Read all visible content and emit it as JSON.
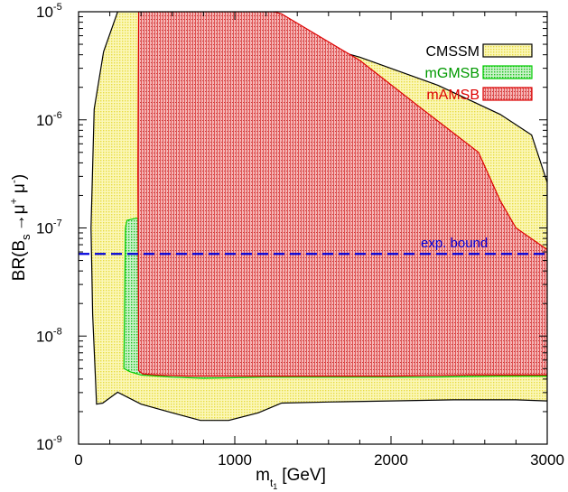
{
  "chart_data": {
    "type": "area",
    "xlabel": {
      "main": "m",
      "sub1": "t",
      "sub2": "1",
      "unit": "[GeV]"
    },
    "ylabel": {
      "prefix": "BR(B",
      "sub": "s",
      "arrow": "→",
      "mu1": "μ",
      "sup1": "+",
      "mu2": " μ",
      "sup2": "-",
      "suffix": ")"
    },
    "xlim": [
      0,
      3000
    ],
    "ylim_log10": [
      -9,
      -5
    ],
    "log_y": true,
    "x_ticks": [
      {
        "value": 0,
        "label": "0"
      },
      {
        "value": 1000,
        "label": "1000"
      },
      {
        "value": 2000,
        "label": "2000"
      },
      {
        "value": 3000,
        "label": "3000"
      }
    ],
    "y_ticks": [
      {
        "exp": -5,
        "base": "10",
        "sup": "-5"
      },
      {
        "exp": -6,
        "base": "10",
        "sup": "-6"
      },
      {
        "exp": -7,
        "base": "10",
        "sup": "-7"
      },
      {
        "exp": -8,
        "base": "10",
        "sup": "-8"
      },
      {
        "exp": -9,
        "base": "10",
        "sup": "-9"
      }
    ],
    "grid": false,
    "legend_position": "top-right",
    "series": [
      {
        "name": "CMSSM",
        "stroke": "#000000",
        "fill": "#f5f080",
        "pattern": "dots",
        "x": [
          115,
          155,
          250,
          400,
          600,
          780,
          960,
          1150,
          1300,
          1600,
          2000,
          2400,
          2800,
          3000,
          3000,
          2900,
          2700,
          2300,
          1800,
          1500,
          1300,
          1000,
          700,
          400,
          250,
          160,
          100,
          80,
          90,
          110
        ],
        "log10_y": [
          -8.63,
          -8.62,
          -8.52,
          -8.63,
          -8.71,
          -8.78,
          -8.78,
          -8.71,
          -8.62,
          -8.61,
          -8.6,
          -8.59,
          -8.59,
          -8.6,
          -6.58,
          -6.14,
          -5.95,
          -5.68,
          -5.42,
          -5.3,
          -5.2,
          -5.02,
          -4.85,
          -4.85,
          -5.0,
          -5.37,
          -5.9,
          -7.0,
          -7.8,
          -8.45
        ]
      },
      {
        "name": "mGMSB",
        "stroke": "#00cc00",
        "fill": "#bfeec0",
        "pattern": "dots",
        "x": [
          310,
          370,
          420,
          600,
          900,
          1300,
          1600,
          1900,
          2200,
          2600,
          3000,
          3000,
          2700,
          2200,
          1700,
          1200,
          800,
          600,
          400,
          330,
          290,
          300
        ],
        "log10_y": [
          -6.93,
          -6.91,
          -6.94,
          -7.06,
          -7.2,
          -7.38,
          -7.5,
          -7.65,
          -7.82,
          -7.92,
          -7.97,
          -8.37,
          -8.37,
          -8.38,
          -8.38,
          -8.38,
          -8.39,
          -8.38,
          -8.36,
          -8.33,
          -8.3,
          -7.0
        ]
      },
      {
        "name": "mAMSB",
        "stroke": "#dd0000",
        "fill": "#f4a8a8",
        "pattern": "vlines",
        "x": [
          385,
          410,
          440,
          1000,
          1300,
          1800,
          2200,
          2560,
          2700,
          2800,
          3000,
          3000,
          2500,
          2000,
          1500,
          1000,
          700,
          500,
          410,
          385,
          380
        ],
        "log10_y": [
          -4.9,
          -4.9,
          -4.9,
          -4.9,
          -5.02,
          -5.45,
          -5.9,
          -6.3,
          -6.75,
          -7.0,
          -7.2,
          -8.36,
          -8.36,
          -8.37,
          -8.37,
          -8.37,
          -8.37,
          -8.36,
          -8.35,
          -8.32,
          -6.5
        ]
      }
    ],
    "exp_bound": {
      "label": "exp. bound",
      "log10_y": -7.24,
      "color": "#0000dd"
    },
    "legend": [
      {
        "name": "CMSSM",
        "text_color": "#000000"
      },
      {
        "name": "mGMSB",
        "text_color": "#009900"
      },
      {
        "name": "mAMSB",
        "text_color": "#dd0000"
      }
    ]
  }
}
